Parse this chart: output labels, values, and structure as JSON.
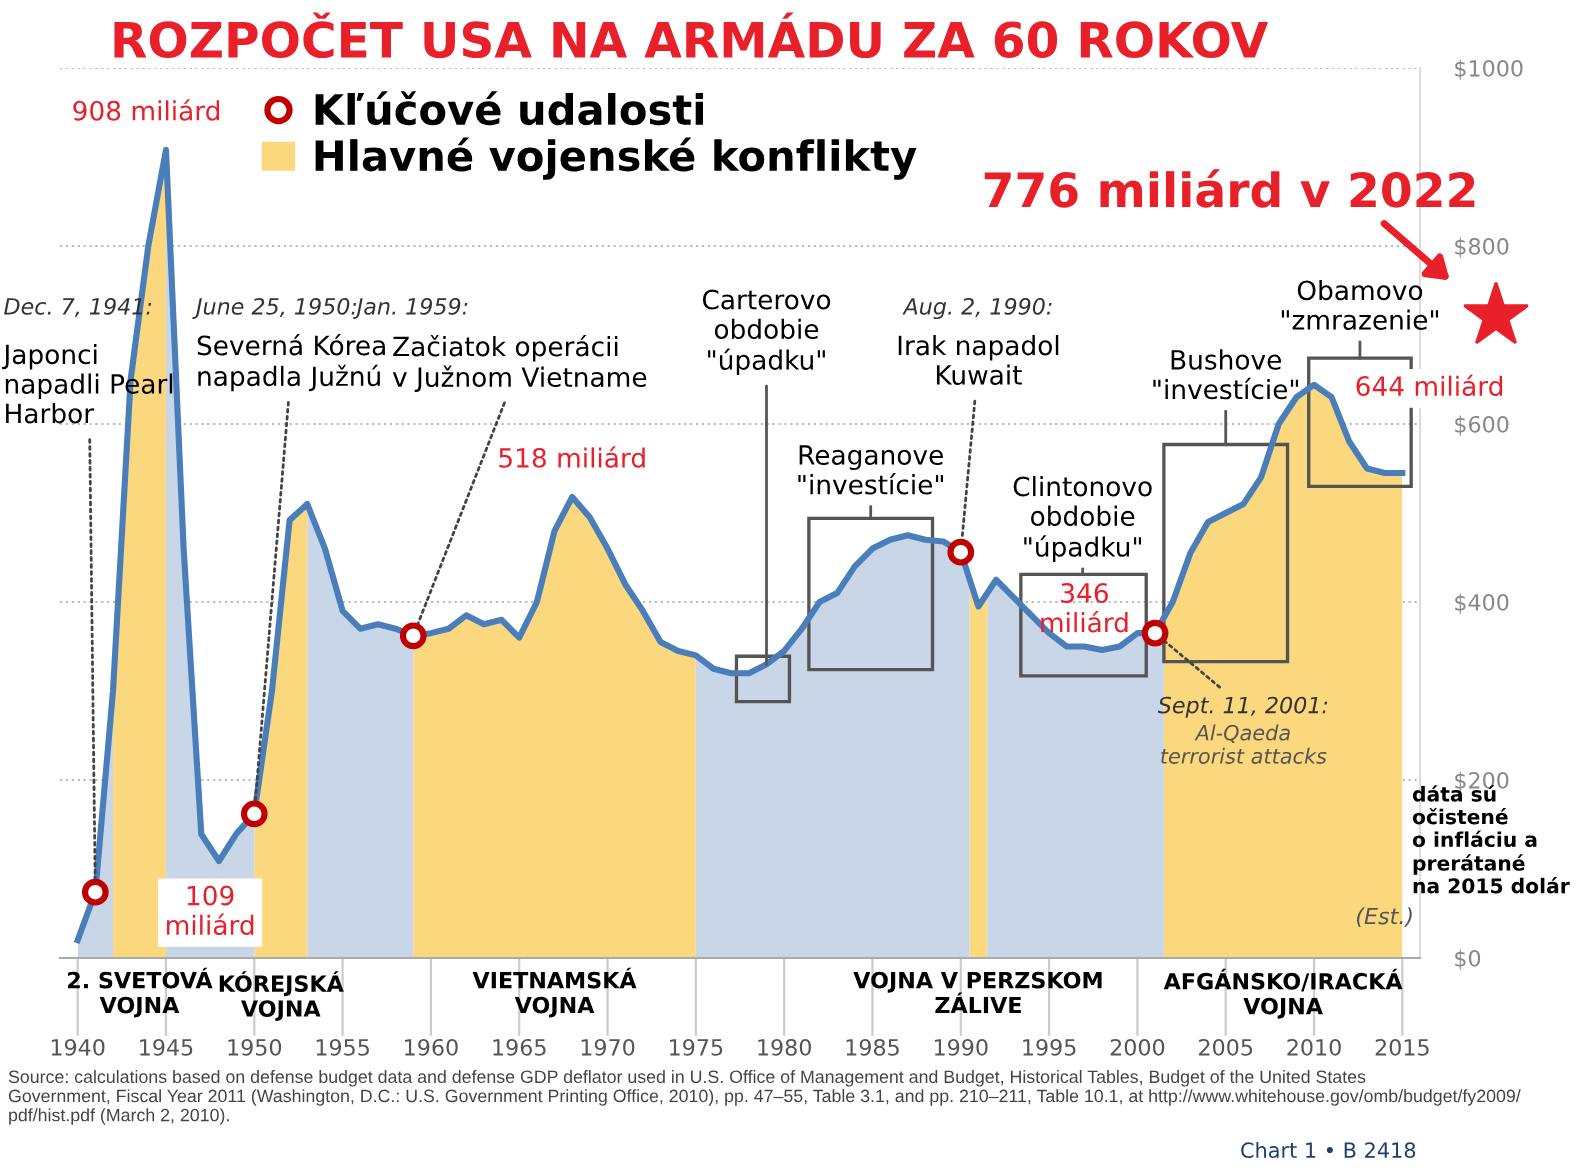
{
  "chart_data": {
    "type": "area",
    "title": "ROZPOČET USA NA ARMÁDU ZA 60 ROKOV",
    "x": [
      1940,
      1941,
      1942,
      1943,
      1944,
      1945,
      1946,
      1947,
      1948,
      1949,
      1950,
      1951,
      1952,
      1953,
      1954,
      1955,
      1956,
      1957,
      1958,
      1959,
      1960,
      1961,
      1962,
      1963,
      1964,
      1965,
      1966,
      1967,
      1968,
      1969,
      1970,
      1971,
      1972,
      1973,
      1974,
      1975,
      1976,
      1977,
      1978,
      1979,
      1980,
      1981,
      1982,
      1983,
      1984,
      1985,
      1986,
      1987,
      1988,
      1989,
      1990,
      1991,
      1992,
      1993,
      1994,
      1995,
      1996,
      1997,
      1998,
      1999,
      2000,
      2001,
      2002,
      2003,
      2004,
      2005,
      2006,
      2007,
      2008,
      2009,
      2010,
      2011,
      2012,
      2013,
      2014,
      2015
    ],
    "series": [
      {
        "color": "#4a7ebb",
        "values": [
          20,
          74,
          300,
          650,
          800,
          908,
          460,
          139,
          109,
          140,
          162,
          300,
          492,
          510,
          460,
          390,
          370,
          375,
          370,
          362,
          365,
          370,
          385,
          375,
          380,
          360,
          400,
          480,
          518,
          495,
          460,
          420,
          390,
          355,
          345,
          340,
          325,
          320,
          320,
          330,
          345,
          370,
          400,
          410,
          440,
          460,
          470,
          475,
          470,
          468,
          456,
          395,
          425,
          405,
          385,
          365,
          350,
          350,
          346,
          350,
          365,
          365,
          400,
          455,
          490,
          500,
          510,
          540,
          600,
          630,
          644,
          630,
          580,
          550,
          545,
          545
        ]
      },
      {
        "type": "scatter",
        "name": "Kľúčové udalosti",
        "color": "#c00000",
        "marker": "circle",
        "x": [
          1941,
          1950,
          1959,
          1990,
          2001
        ],
        "values": [
          74,
          162,
          362,
          456,
          365
        ]
      }
    ],
    "xlim": [
      1939,
      2016
    ],
    "ylim": [
      0,
      1000
    ],
    "xticks": [
      1940,
      1945,
      1950,
      1955,
      1960,
      1965,
      1970,
      1975,
      1980,
      1985,
      1990,
      1995,
      2000,
      2005,
      2010,
      2015
    ],
    "yticks": [
      {
        "value": 0,
        "label": "$0"
      },
      {
        "value": 200,
        "label": "$200"
      },
      {
        "value": 400,
        "label": "$400"
      },
      {
        "value": 600,
        "label": "$600"
      },
      {
        "value": 800,
        "label": "$800"
      },
      {
        "value": 1000,
        "label": "$1000"
      }
    ],
    "grid": "y",
    "legend": "top",
    "bands": [
      {
        "axis": "x",
        "from": 1942,
        "to": 1945,
        "label": "2. SVETOVÁ\nVOJNA",
        "color": "#fbd77e"
      },
      {
        "axis": "x",
        "from": 1950,
        "to": 1953,
        "label": "KÓREJSKÁ\nVOJNA",
        "color": "#fbd77e"
      },
      {
        "axis": "x",
        "from": 1959,
        "to": 1975,
        "label": "VIETNAMSKÁ\nVOJNA",
        "color": "#fbd77e"
      },
      {
        "axis": "x",
        "from": 1990.5,
        "to": 1991.5,
        "label": "VOJNA V PERZSKOM\nZÁLIVE",
        "color": "#fbd77e"
      },
      {
        "axis": "x",
        "from": 2001.5,
        "to": 2015,
        "label": "AFGÁNSKO/IRACKÁ\nVOJNA",
        "color": "#fbd77e"
      }
    ],
    "annotations": [
      {
        "text": "908 miliárd",
        "x": 1945,
        "y": 908
      },
      {
        "text": "518 miliárd",
        "x": 1968,
        "y": 518
      },
      {
        "text": "109\nmiliárd",
        "x": 1948,
        "y": 109
      },
      {
        "text": "346\nmiliárd",
        "x": 1998,
        "y": 346
      },
      {
        "text": "644 miliárd",
        "x": 2010,
        "y": 644
      },
      "Dec. 7, 1941:",
      {
        "text": "Japonci\nnapadli Pearl\nHarbor",
        "x": 1941,
        "y": 74
      },
      "June 25, 1950:",
      {
        "text": "Severná Kórea\nnapadla Južnú",
        "x": 1950,
        "y": 162
      },
      "Jan. 1959:",
      {
        "text": "Začiatok operácii\nv Južnom Vietname",
        "x": 1959,
        "y": 362
      },
      "Aug. 2, 1990:",
      {
        "text": "Irak napadol\nKuwait",
        "x": 1990,
        "y": 456
      },
      {
        "text": "Sept. 11, 2001:",
        "x": 2001,
        "y": 365
      },
      "Al-Qaeda\nterrorist attacks",
      "776 miliárd v 2022",
      "Hlavné vojenské konflikty",
      "dáta sú\nočistené\no infláciu a\nprerátané\nna 2015 dolár",
      "Source: calculations based on defense budget data and defense GDP deflator used in U.S. Office of Management and Budget, Historical Tables, Budget of the United States\nGovernment, Fiscal Year 2011 (Washington, D.C.: U.S. Government Printing Office, 2010), pp. 47–55, Table 3.1, and pp. 210–211, Table 10.1, at http://www.whitehouse.gov/omb/budget/fy2009/\npdf/hist.pdf (March 2, 2010).",
      "Chart 1 • B 2418",
      "(Est.)",
      {
        "text": "Carterovo\nobdobie\n\"úpadku\"",
        "x": 1979,
        "y": 330
      },
      "Reaganove\n\"investície\"",
      "Clintonovo\nobdobie\n\"úpadku\"",
      "Bushove\n\"investície\"",
      "Obamovo\n\"zmrazenie\""
    ]
  }
}
